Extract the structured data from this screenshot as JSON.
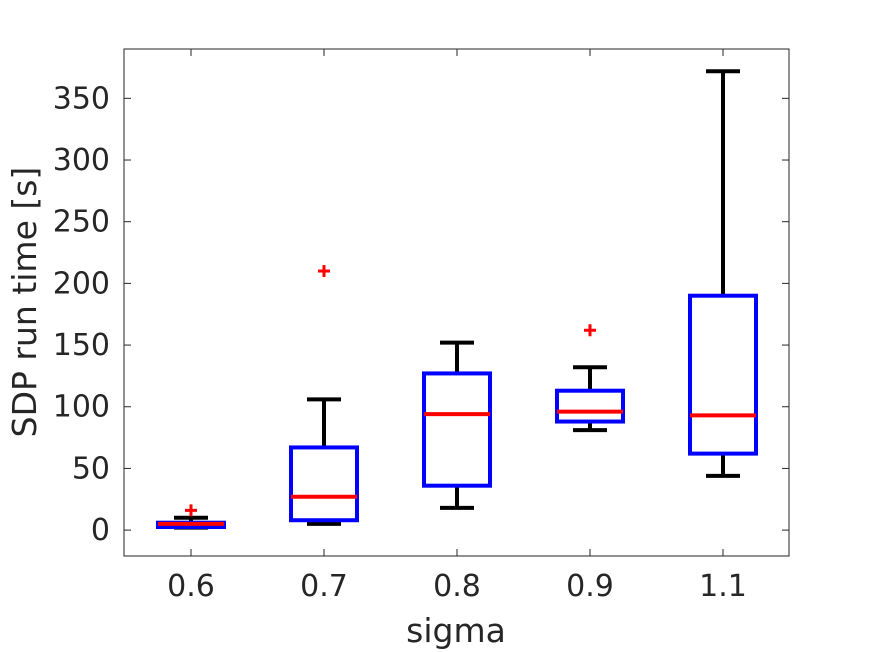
{
  "chart_data": {
    "type": "box",
    "xlabel": "sigma",
    "ylabel": "SDP run time [s]",
    "categories": [
      "0.6",
      "0.7",
      "0.8",
      "0.9",
      "1.1"
    ],
    "ylim": [
      -21,
      390
    ],
    "yticks": [
      0,
      50,
      100,
      150,
      200,
      250,
      300,
      350
    ],
    "boxes": [
      {
        "category": "0.6",
        "whisker_low": 2,
        "q1": 2.5,
        "median": 5,
        "q3": 6,
        "whisker_high": 10,
        "outliers": [
          16
        ]
      },
      {
        "category": "0.7",
        "whisker_low": 5,
        "q1": 8,
        "median": 27,
        "q3": 67,
        "whisker_high": 106,
        "outliers": [
          210
        ]
      },
      {
        "category": "0.8",
        "whisker_low": 18,
        "q1": 36,
        "median": 94,
        "q3": 127,
        "whisker_high": 152,
        "outliers": []
      },
      {
        "category": "0.9",
        "whisker_low": 81,
        "q1": 88,
        "median": 96,
        "q3": 113,
        "whisker_high": 132,
        "outliers": [
          162
        ]
      },
      {
        "category": "1.1",
        "whisker_low": 44,
        "q1": 62,
        "median": 93,
        "q3": 190,
        "whisker_high": 372,
        "outliers": []
      }
    ],
    "grid": false,
    "legend": "none",
    "colors": {
      "box": "#0000ff",
      "median": "#ff0000",
      "whisker": "#000000",
      "outlier": "#ff0000",
      "axes": "#262626"
    }
  }
}
